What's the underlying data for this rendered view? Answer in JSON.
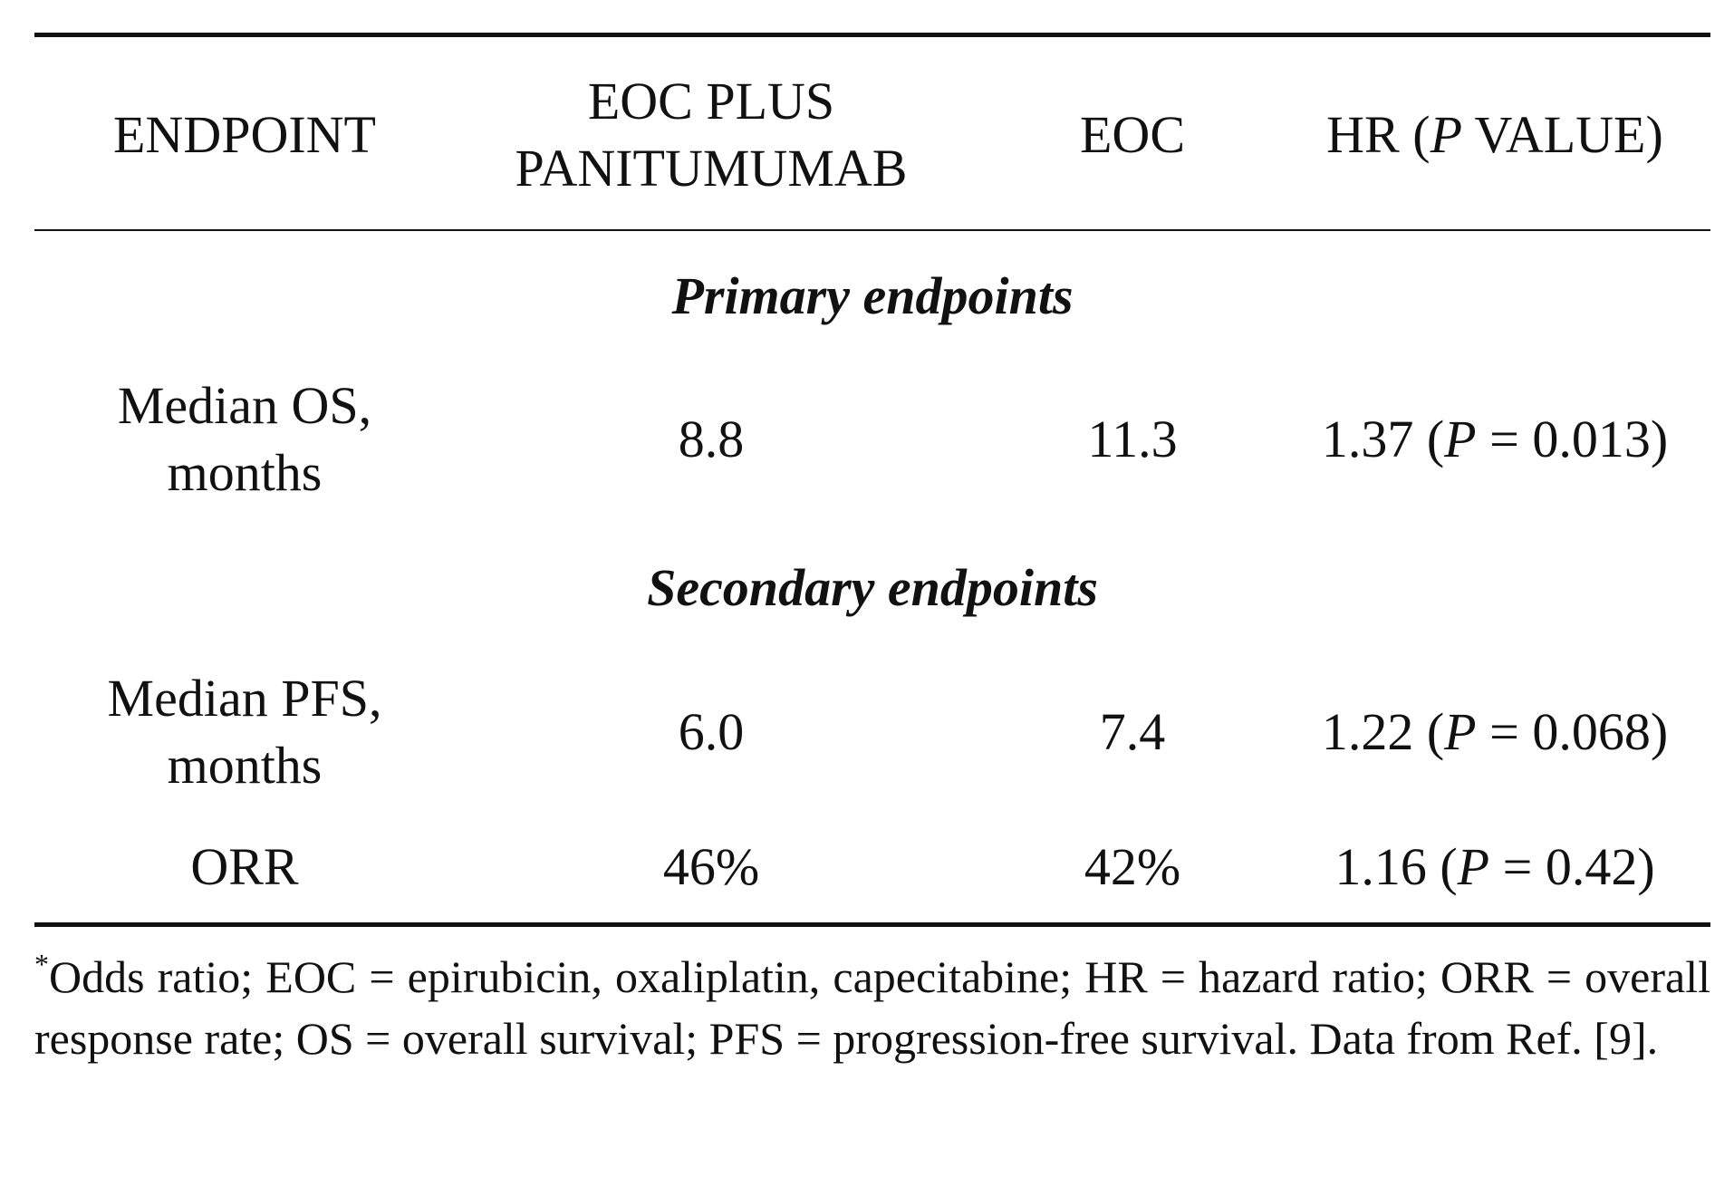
{
  "table": {
    "headers": {
      "endpoint": "ENDPOINT",
      "arm1_line1": "EOC PLUS",
      "arm1_line2": "PANITUMUMAB",
      "arm2": "EOC",
      "hr_prefix": "HR (",
      "hr_italic": "P",
      "hr_suffix": " VALUE)"
    },
    "sections": [
      {
        "title": "Primary endpoints",
        "rows": [
          {
            "endpoint_line1": "Median OS,",
            "endpoint_line2": "months",
            "arm1": "8.8",
            "arm2": "11.3",
            "hr_value": "1.37 (",
            "hr_p": "P",
            "hr_rest": " = 0.013)"
          }
        ]
      },
      {
        "title": "Secondary endpoints",
        "rows": [
          {
            "endpoint_line1": "Median PFS,",
            "endpoint_line2": "months",
            "arm1": "6.0",
            "arm2": "7.4",
            "hr_value": "1.22 (",
            "hr_p": "P",
            "hr_rest": " = 0.068)"
          },
          {
            "endpoint": "ORR",
            "arm1": "46%",
            "arm2": "42%",
            "hr_value": "1.16 (",
            "hr_p": "P",
            "hr_rest": " = 0.42)"
          }
        ]
      }
    ]
  },
  "footnote": {
    "marker": "*",
    "text": "Odds ratio; EOC = epirubicin, oxaliplatin, capecitabine; HR = hazard ratio; ORR = overall response rate; OS = overall survival; PFS = progression-free survival. Data from Ref. [9]."
  }
}
